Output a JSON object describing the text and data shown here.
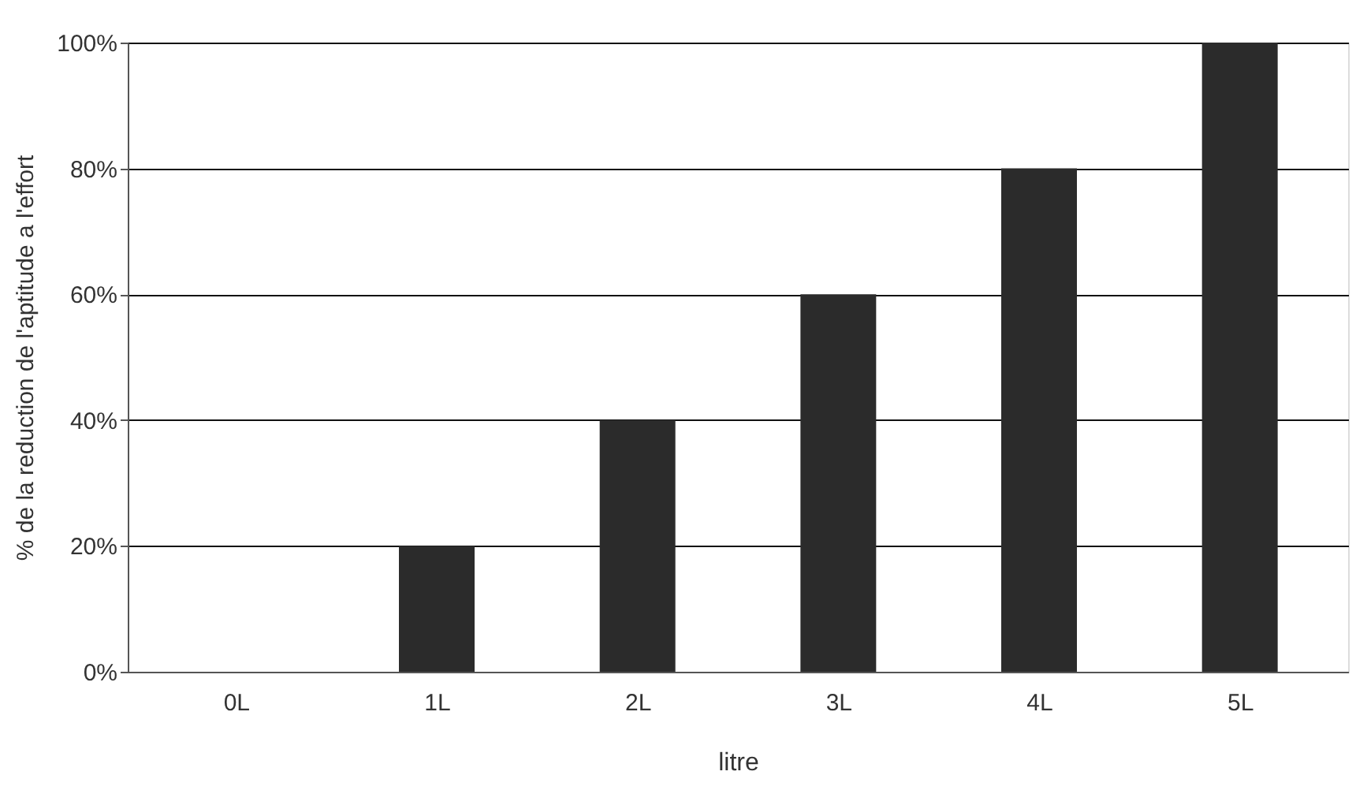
{
  "chart_data": {
    "type": "bar",
    "xlabel": "litre",
    "ylabel": "% de la reduction de l'aptitude a l'effort",
    "categories": [
      "0L",
      "1L",
      "2L",
      "3L",
      "4L",
      "5L"
    ],
    "values": [
      0,
      20,
      40,
      60,
      80,
      100
    ],
    "color": "#2b2b2b",
    "ylim": [
      0,
      100
    ],
    "yticks": [
      {
        "value": 0,
        "label": "0%"
      },
      {
        "value": 20,
        "label": "20%"
      },
      {
        "value": 40,
        "label": "40%"
      },
      {
        "value": 60,
        "label": "60%"
      },
      {
        "value": 80,
        "label": "80%"
      },
      {
        "value": 100,
        "label": "100%"
      }
    ],
    "grid": "y"
  }
}
